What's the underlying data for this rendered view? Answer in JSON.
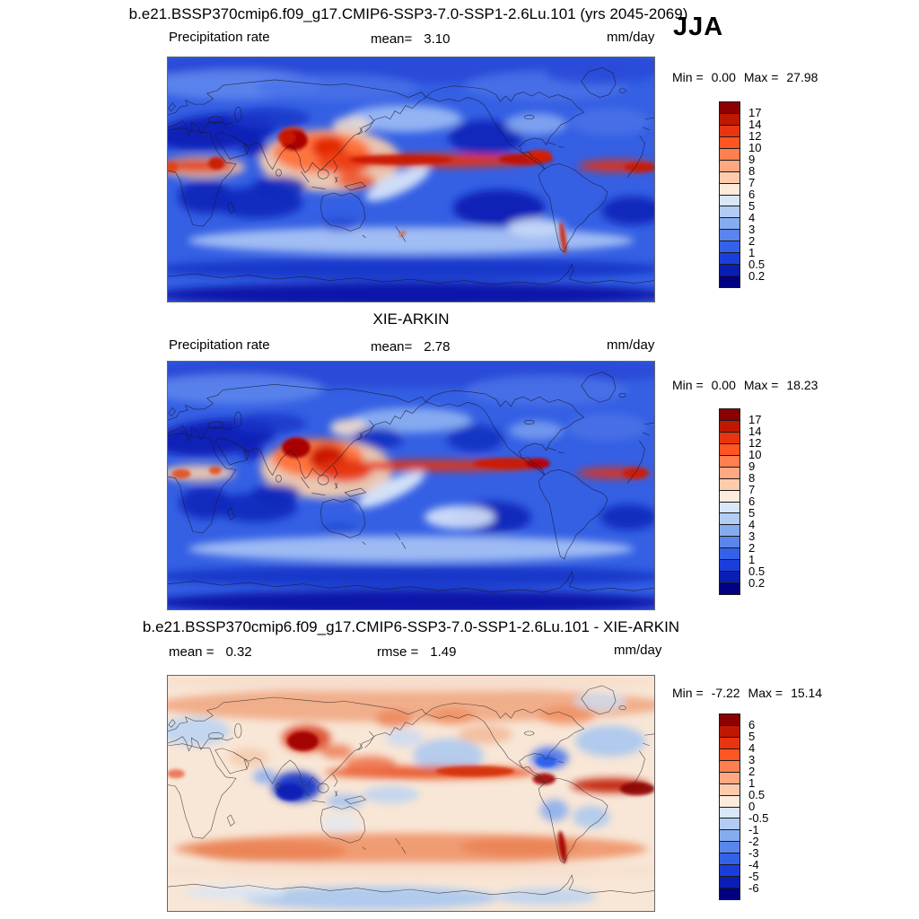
{
  "header": {
    "title": "b.e21.BSSP370cmip6.f09_g17.CMIP6-SSP3-7.0-SSP1-2.6Lu.101 (yrs 2045-2069)",
    "season": "JJA"
  },
  "palette": [
    "#8B0000",
    "#C01800",
    "#E83410",
    "#FF5520",
    "#FF7F50",
    "#FFA882",
    "#FFCBAD",
    "#FEEBDC",
    "#D8E8F8",
    "#B2CCF4",
    "#86ACF0",
    "#5A85EC",
    "#3361E8",
    "#1A3EDC",
    "#0A1EB4",
    "#000080"
  ],
  "panels": [
    {
      "name": "model",
      "field_label": "Precipitation rate",
      "stat1_label": "mean=",
      "stat1_value": "3.10",
      "units": "mm/day",
      "min_label": "Min =",
      "min_value": "0.00",
      "max_label": "Max =",
      "max_value": "27.98",
      "ticks": [
        "17",
        "14",
        "12",
        "10",
        "9",
        "8",
        "7",
        "6",
        "5",
        "4",
        "3",
        "2",
        "1",
        "0.5",
        "0.2"
      ]
    },
    {
      "name": "observations",
      "title": "XIE-ARKIN",
      "field_label": "Precipitation rate",
      "stat1_label": "mean=",
      "stat1_value": "2.78",
      "units": "mm/day",
      "min_label": "Min =",
      "min_value": "0.00",
      "max_label": "Max =",
      "max_value": "18.23",
      "ticks": [
        "17",
        "14",
        "12",
        "10",
        "9",
        "8",
        "7",
        "6",
        "5",
        "4",
        "3",
        "2",
        "1",
        "0.5",
        "0.2"
      ]
    },
    {
      "name": "difference",
      "title": "b.e21.BSSP370cmip6.f09_g17.CMIP6-SSP3-7.0-SSP1-2.6Lu.101 - XIE-ARKIN",
      "stat1_label": "mean =",
      "stat1_value": "0.32",
      "stat2_label": "rmse =",
      "stat2_value": "1.49",
      "units": "mm/day",
      "min_label": "Min =",
      "min_value": "-7.22",
      "max_label": "Max =",
      "max_value": "15.14",
      "ticks": [
        "6",
        "5",
        "4",
        "3",
        "2",
        "1",
        "0.5",
        "0",
        "-0.5",
        "-1",
        "-2",
        "-3",
        "-4",
        "-5",
        "-6"
      ]
    }
  ],
  "chart_data": [
    {
      "type": "heatmap",
      "panel": "model",
      "title": "b.e21.BSSP370cmip6.f09_g17.CMIP6-SSP3-7.0-SSP1-2.6Lu.101 (yrs 2045-2069)",
      "variable": "Precipitation rate",
      "season": "JJA",
      "units": "mm/day",
      "domain": "global latitude-longitude map, 0-360E, 90S-90N",
      "mean": 3.1,
      "min": 0.0,
      "max": 27.98,
      "contour_levels": [
        0.2,
        0.5,
        1,
        2,
        3,
        4,
        5,
        6,
        7,
        8,
        9,
        10,
        12,
        14,
        17
      ],
      "colormap": "16-step dark blue (low) to dark red (high)",
      "pattern": "intense ITCZ rain band (>10 mm/day) across tropical Pacific near 8N extending to tropical Atlantic; heavy monsoon rain over India, Bay of Bengal, Southeast Asia, Tibet margin and west Pacific warm pool; equatorial Africa band with Ethiopian maximum; very dry (<1 mm/day) Sahara-Arabia, southern Africa, SE Pacific, S Atlantic and S Indian subtropics; thin wet strip along southern Andes; dark dry band around Antarctica"
    },
    {
      "type": "heatmap",
      "panel": "observations",
      "title": "XIE-ARKIN",
      "variable": "Precipitation rate",
      "season": "JJA",
      "units": "mm/day",
      "domain": "global latitude-longitude map, 0-360E, 90S-90N",
      "mean": 2.78,
      "min": 0.0,
      "max": 18.23,
      "contour_levels": [
        0.2,
        0.5,
        1,
        2,
        3,
        4,
        5,
        6,
        7,
        8,
        9,
        10,
        12,
        14,
        17
      ],
      "colormap": "16-step dark blue (low) to dark red (high)",
      "pattern": "similar to model: narrower Pacific ITCZ band near 8N, strong maxima over Bay of Bengal, Philippines and warm pool, Atlantic ITCZ blob, pale equatorial Africa band, dry subtropical highs and Southern Ocean polar band"
    },
    {
      "type": "heatmap",
      "panel": "difference",
      "title": "b.e21.BSSP370cmip6.f09_g17.CMIP6-SSP3-7.0-SSP1-2.6Lu.101 - XIE-ARKIN",
      "variable": "Precipitation rate difference (model minus observations)",
      "season": "JJA",
      "units": "mm/day",
      "mean": 0.32,
      "rmse": 1.49,
      "min": -7.22,
      "max": 15.14,
      "contour_levels": [
        -6,
        -5,
        -4,
        -3,
        -2,
        -1,
        -0.5,
        0,
        0.5,
        1,
        2,
        3,
        4,
        5,
        6
      ],
      "colormap": "16-step dark blue (negative) through white (0) to dark red (positive)",
      "pattern": "strong wet bias over Tibetan Plateau/Himalaya, central Pacific 10N band, Central America-tropical Atlantic ITCZ, southern Andes and southern midlatitude ocean band; dry bias over Bay of Bengal-Maritime Continent, Caribbean/Gulf of Mexico, subtropical South America, North Atlantic and parts of Antarctica"
    }
  ]
}
